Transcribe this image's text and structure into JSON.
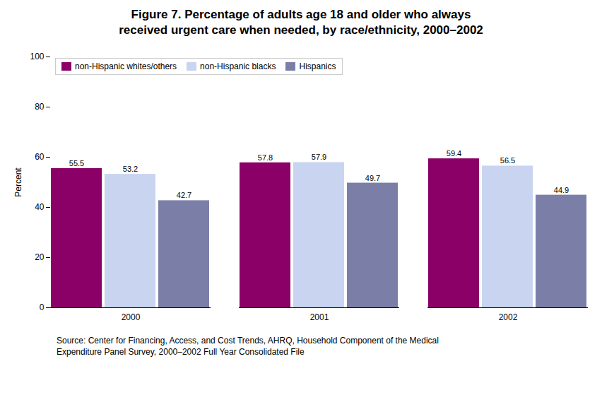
{
  "chart_data": {
    "type": "bar",
    "title": "Figure 7. Percentage of adults age 18 and older who always\nreceived urgent care when needed, by race/ethnicity, 2000–2002",
    "caption": "Source: Center for Financing, Access, and Cost Trends, AHRQ, Household Component of the Medical\nExpenditure Panel Survey, 2000–2002 Full Year Consolidated File",
    "categories": [
      "2000",
      "2001",
      "2002"
    ],
    "series": [
      {
        "name": "non-Hispanic whites/others",
        "color": "#8B0066",
        "values": [
          55.5,
          57.8,
          59.4
        ]
      },
      {
        "name": "non-Hispanic blacks",
        "color": "#c8d4f0",
        "values": [
          53.2,
          57.9,
          56.5
        ]
      },
      {
        "name": "Hispanics",
        "color": "#7b7fa8",
        "values": [
          42.7,
          49.7,
          44.9
        ]
      }
    ],
    "ylabel": "Percent",
    "ylim": [
      0,
      100
    ],
    "yticks": [
      0,
      20,
      40,
      60,
      80,
      100
    ],
    "grid": false,
    "legend": "upper left",
    "data_labels": true
  }
}
